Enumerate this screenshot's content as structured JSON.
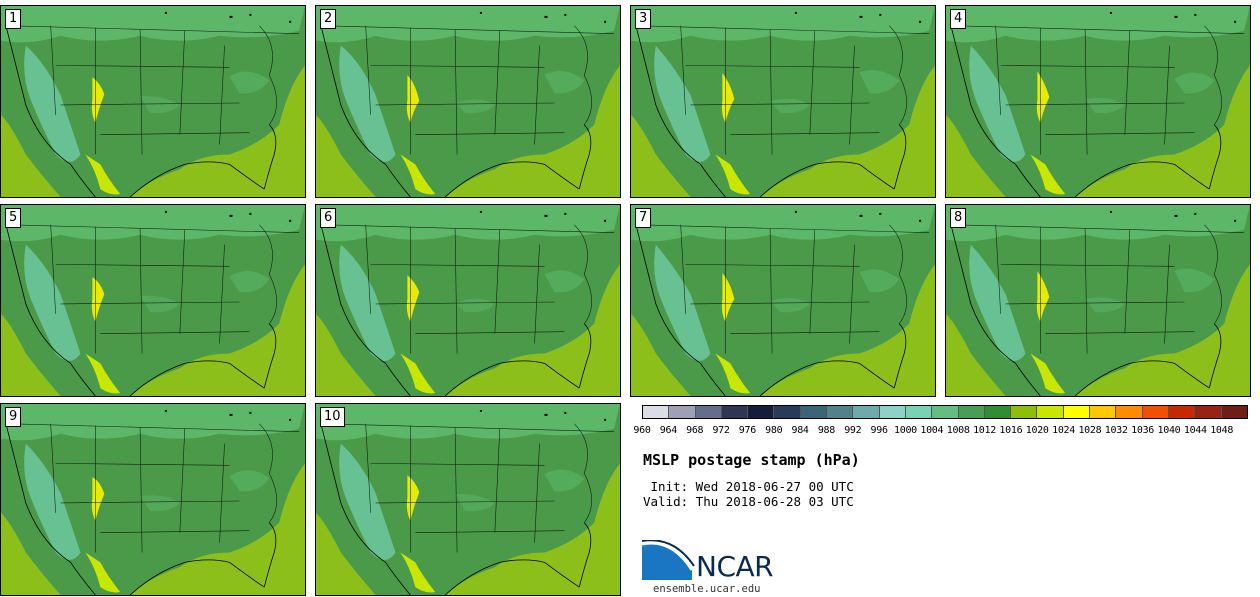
{
  "title": "MSLP postage stamp (hPa)",
  "init": " Init: Wed 2018-06-27 00 UTC",
  "valid": "Valid: Thu 2018-06-28 03 UTC",
  "site": "ensemble.ucar.edu",
  "logo": "NCAR",
  "members": [
    "1",
    "2",
    "3",
    "4",
    "5",
    "6",
    "7",
    "8",
    "9",
    "10"
  ],
  "colorbar": {
    "labels": [
      "960",
      "964",
      "968",
      "972",
      "976",
      "980",
      "984",
      "988",
      "992",
      "996",
      "1000",
      "1004",
      "1008",
      "1012",
      "1016",
      "1020",
      "1024",
      "1028",
      "1032",
      "1036",
      "1040",
      "1044",
      "1048"
    ],
    "colors": [
      "#dcdce4",
      "#a0a0b4",
      "#646e8c",
      "#2d3755",
      "#141e3c",
      "#283c5a",
      "#3c6478",
      "#50828c",
      "#6eaaaa",
      "#8cd2c8",
      "#78d2b4",
      "#64be82",
      "#46a050",
      "#328c32",
      "#8cbe0a",
      "#c8e600",
      "#ffff00",
      "#ffc800",
      "#ff8c00",
      "#f05000",
      "#c82800",
      "#962314",
      "#6e1e14"
    ]
  },
  "colors": {
    "land_main": "#4a9a4a",
    "land_north": "#5cb868",
    "land_south": "#3e8e3e",
    "high_pressure": "#8dbf1a",
    "very_high": "#c8e600",
    "mountains": "#6fcaa5",
    "peaks": "#e6ec00"
  }
}
